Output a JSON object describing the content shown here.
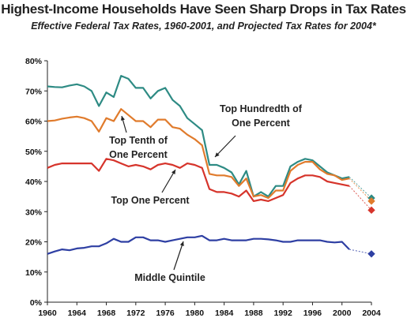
{
  "chart_data": {
    "type": "line",
    "title": "Highest-Income Households Have Seen Sharp Drops in Tax Rates",
    "subtitle": "Effective Federal Tax Rates, 1960-2001, and Projected Tax Rates for 2004*",
    "xlabel": "",
    "ylabel": "",
    "xlim": [
      1960,
      2004
    ],
    "ylim": [
      0,
      80
    ],
    "x_ticks": [
      "1960",
      "1964",
      "1968",
      "1972",
      "1976",
      "1980",
      "1984",
      "1988",
      "1992",
      "1996",
      "2000",
      "2004"
    ],
    "y_ticks": [
      "0%",
      "10%",
      "20%",
      "30%",
      "40%",
      "50%",
      "60%",
      "70%",
      "80%"
    ],
    "grid": false,
    "legend": "none (series labeled by annotations)",
    "colors": {
      "top_hundredth": "#2e8b84",
      "top_tenth": "#e07b2c",
      "top_one": "#d6342b",
      "middle_quintile": "#2e3fa3"
    },
    "x": [
      1960,
      1961,
      1962,
      1963,
      1964,
      1965,
      1966,
      1967,
      1968,
      1969,
      1970,
      1971,
      1972,
      1973,
      1974,
      1975,
      1976,
      1977,
      1978,
      1979,
      1980,
      1981,
      1982,
      1983,
      1984,
      1985,
      1986,
      1987,
      1988,
      1989,
      1990,
      1991,
      1992,
      1993,
      1994,
      1995,
      1996,
      1997,
      1998,
      1999,
      2000,
      2001
    ],
    "series": [
      {
        "name": "Top Hundredth of One Percent",
        "color": "#2e8b84",
        "values": [
          71.5,
          71.3,
          71.2,
          71.8,
          72.2,
          71.5,
          70.0,
          65.0,
          69.5,
          68.0,
          75.0,
          74.0,
          71.0,
          71.0,
          67.5,
          70.0,
          71.0,
          67.0,
          65.0,
          61.0,
          59.0,
          57.0,
          45.5,
          45.5,
          44.5,
          43.0,
          39.0,
          43.5,
          35.0,
          36.5,
          35.0,
          38.5,
          38.5,
          45.0,
          46.5,
          47.5,
          47.0,
          45.0,
          43.0,
          42.0,
          41.0,
          41.5
        ],
        "projection": {
          "x": 2004,
          "value": 34.5
        }
      },
      {
        "name": "Top Tenth of One Percent",
        "color": "#e07b2c",
        "values": [
          60.0,
          60.2,
          60.8,
          61.2,
          61.5,
          61.0,
          60.0,
          56.5,
          61.0,
          60.0,
          64.0,
          62.0,
          60.0,
          60.0,
          58.0,
          60.5,
          60.5,
          58.0,
          57.5,
          55.5,
          54.0,
          52.0,
          42.5,
          42.0,
          42.0,
          41.5,
          38.5,
          41.0,
          35.0,
          35.5,
          34.5,
          37.0,
          37.0,
          43.5,
          45.5,
          46.5,
          46.5,
          44.0,
          42.5,
          42.0,
          40.5,
          41.0
        ],
        "projection": {
          "x": 2004,
          "value": 33.5
        }
      },
      {
        "name": "Top One Percent",
        "color": "#d6342b",
        "values": [
          44.5,
          45.5,
          46.0,
          46.0,
          46.0,
          46.0,
          46.0,
          43.5,
          47.5,
          47.0,
          46.0,
          45.0,
          45.5,
          45.0,
          44.0,
          45.5,
          46.0,
          45.5,
          44.5,
          46.0,
          45.5,
          44.5,
          37.5,
          36.5,
          36.5,
          36.0,
          35.0,
          37.0,
          33.5,
          34.0,
          33.5,
          34.5,
          35.5,
          39.5,
          41.0,
          42.0,
          42.0,
          41.5,
          40.0,
          39.5,
          39.0,
          38.5
        ],
        "projection": {
          "x": 2004,
          "value": 30.5
        }
      },
      {
        "name": "Middle Quintile",
        "color": "#2e3fa3",
        "values": [
          16.0,
          16.8,
          17.5,
          17.2,
          17.8,
          18.0,
          18.5,
          18.5,
          19.5,
          21.0,
          20.0,
          20.0,
          21.5,
          21.5,
          20.5,
          20.5,
          20.0,
          20.5,
          21.0,
          21.5,
          21.5,
          22.0,
          20.5,
          20.5,
          21.0,
          20.5,
          20.5,
          20.5,
          21.0,
          21.0,
          20.8,
          20.5,
          20.0,
          20.0,
          20.5,
          20.5,
          20.5,
          20.5,
          20.0,
          19.8,
          20.0,
          17.5
        ],
        "projection": {
          "x": 2004,
          "value": 16.0
        }
      }
    ],
    "annotations": [
      {
        "series": "Top Hundredth of One Percent",
        "lines": [
          "Top Hundredth of",
          "One Percent"
        ]
      },
      {
        "series": "Top Tenth of One Percent",
        "lines": [
          "Top Tenth of",
          "One Percent"
        ]
      },
      {
        "series": "Top One Percent",
        "lines": [
          "Top One Percent"
        ]
      },
      {
        "series": "Middle Quintile",
        "lines": [
          "Middle Quintile"
        ]
      }
    ]
  }
}
